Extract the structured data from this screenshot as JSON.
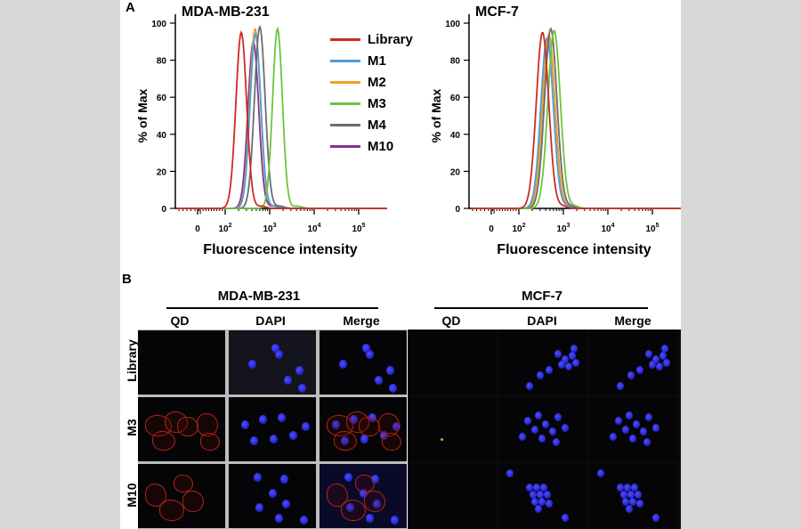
{
  "panels": {
    "A": "A",
    "B": "B"
  },
  "chart_data": [
    {
      "type": "line",
      "title": "MDA-MB-231",
      "xlabel": "Fluorescence intensity",
      "ylabel": "% of Max",
      "x_scale": "log",
      "xlim": [
        0,
        100000
      ],
      "ylim": [
        0,
        100
      ],
      "y_ticks": [
        "0",
        "20",
        "40",
        "60",
        "80",
        "100"
      ],
      "x_ticks": [
        {
          "base": "0",
          "exp": ""
        },
        {
          "base": "10",
          "exp": "2"
        },
        {
          "base": "10",
          "exp": "3"
        },
        {
          "base": "10",
          "exp": "4"
        },
        {
          "base": "10",
          "exp": "5"
        }
      ],
      "legend_position": "top-right",
      "series": [
        {
          "name": "Library",
          "peak": 230,
          "height": 95
        },
        {
          "name": "M1",
          "peak": 480,
          "height": 94
        },
        {
          "name": "M2",
          "peak": 470,
          "height": 97
        },
        {
          "name": "M3",
          "peak": 1500,
          "height": 97
        },
        {
          "name": "M4",
          "peak": 600,
          "height": 98
        },
        {
          "name": "M10",
          "peak": 430,
          "height": 90
        }
      ]
    },
    {
      "type": "line",
      "title": "MCF-7",
      "xlabel": "Fluorescence intensity",
      "ylabel": "% of Max",
      "x_scale": "log",
      "xlim": [
        0,
        100000
      ],
      "ylim": [
        0,
        100
      ],
      "y_ticks": [
        "0",
        "20",
        "40",
        "60",
        "80",
        "100"
      ],
      "x_ticks": [
        {
          "base": "0",
          "exp": ""
        },
        {
          "base": "10",
          "exp": "2"
        },
        {
          "base": "10",
          "exp": "3"
        },
        {
          "base": "10",
          "exp": "4"
        },
        {
          "base": "10",
          "exp": "5"
        }
      ],
      "series": [
        {
          "name": "Library",
          "peak": 340,
          "height": 95
        },
        {
          "name": "M1",
          "peak": 430,
          "height": 92
        },
        {
          "name": "M2",
          "peak": 470,
          "height": 94
        },
        {
          "name": "M3",
          "peak": 620,
          "height": 96
        },
        {
          "name": "M4",
          "peak": 520,
          "height": 97
        },
        {
          "name": "M10",
          "peak": 470,
          "height": 93
        }
      ]
    }
  ],
  "series_colors": {
    "Library": "#d02a22",
    "M1": "#4b9ee0",
    "M2": "#f0a21e",
    "M3": "#6cc43c",
    "M4": "#6d6d6d",
    "M10": "#86318e"
  },
  "microscopy": {
    "groups": [
      {
        "title": "MDA-MB-231",
        "columns": [
          "QD",
          "DAPI",
          "Merge"
        ]
      },
      {
        "title": "MCF-7",
        "columns": [
          "QD",
          "DAPI",
          "Merge"
        ]
      }
    ],
    "rows": [
      "Library",
      "M3",
      "M10"
    ]
  }
}
